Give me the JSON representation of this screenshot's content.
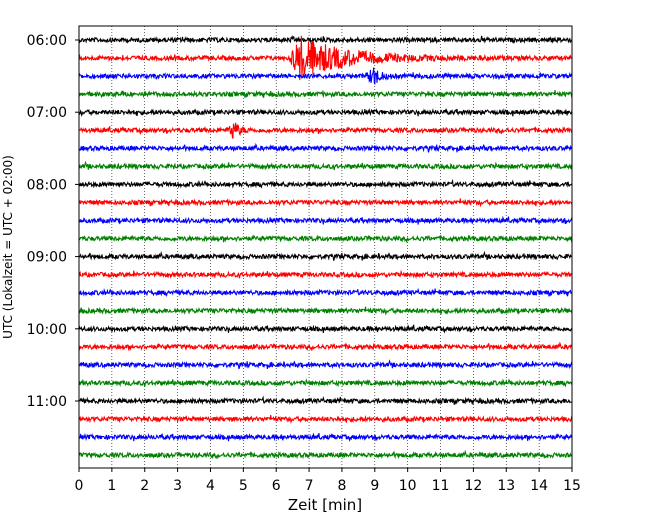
{
  "chart_data": {
    "type": "line",
    "title": "",
    "xlabel": "Zeit  [min]",
    "ylabel": "UTC (Lokalzeit = UTC + 02:00)",
    "xlim": [
      0,
      15
    ],
    "x_ticks": [
      0,
      1,
      2,
      3,
      4,
      5,
      6,
      7,
      8,
      9,
      10,
      11,
      12,
      13,
      14,
      15
    ],
    "y_tick_labels": [
      "06:00",
      "07:00",
      "08:00",
      "09:00",
      "10:00",
      "11:00"
    ],
    "rows_per_hour": 4,
    "row_minutes": 15,
    "grid": "vertical dotted lines at each minute",
    "series": [
      {
        "start": "06:00",
        "color": "#000000"
      },
      {
        "start": "06:15",
        "color": "#ff0000"
      },
      {
        "start": "06:30",
        "color": "#0000ff"
      },
      {
        "start": "06:45",
        "color": "#008000"
      },
      {
        "start": "07:00",
        "color": "#000000"
      },
      {
        "start": "07:15",
        "color": "#ff0000"
      },
      {
        "start": "07:30",
        "color": "#0000ff"
      },
      {
        "start": "07:45",
        "color": "#008000"
      },
      {
        "start": "08:00",
        "color": "#000000"
      },
      {
        "start": "08:15",
        "color": "#ff0000"
      },
      {
        "start": "08:30",
        "color": "#0000ff"
      },
      {
        "start": "08:45",
        "color": "#008000"
      },
      {
        "start": "09:00",
        "color": "#000000"
      },
      {
        "start": "09:15",
        "color": "#ff0000"
      },
      {
        "start": "09:30",
        "color": "#0000ff"
      },
      {
        "start": "09:45",
        "color": "#008000"
      },
      {
        "start": "10:00",
        "color": "#000000"
      },
      {
        "start": "10:15",
        "color": "#ff0000"
      },
      {
        "start": "10:30",
        "color": "#0000ff"
      },
      {
        "start": "10:45",
        "color": "#008000"
      },
      {
        "start": "11:00",
        "color": "#000000"
      },
      {
        "start": "11:15",
        "color": "#ff0000"
      },
      {
        "start": "11:30",
        "color": "#0000ff"
      },
      {
        "start": "11:45",
        "color": "#008000"
      }
    ],
    "events": [
      {
        "start": "06:15",
        "onset_min": 6.4,
        "peak_min": 6.7,
        "end_min": 13.5,
        "description": "large earthquake wavetrain"
      },
      {
        "start": "06:30",
        "onset_min": 8.7,
        "peak_min": 9.0,
        "end_min": 9.6,
        "description": "coda continuation"
      },
      {
        "start": "07:15",
        "onset_min": 4.5,
        "peak_min": 4.7,
        "end_min": 5.3,
        "description": "local event"
      }
    ]
  }
}
